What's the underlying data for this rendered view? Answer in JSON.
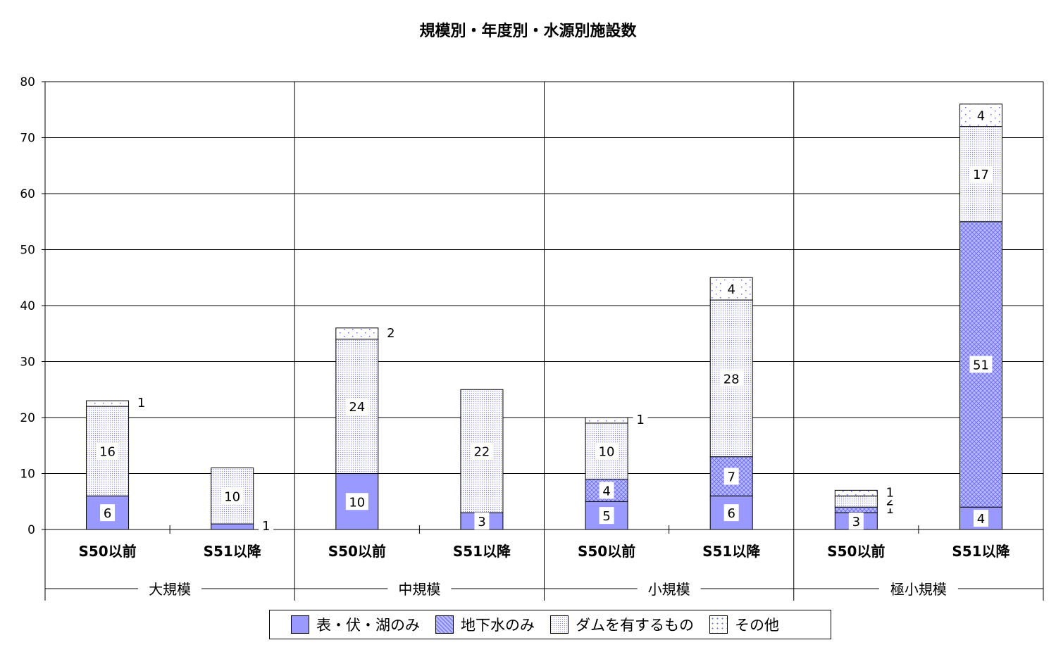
{
  "chart_data": {
    "type": "bar",
    "stacked": true,
    "title": "規模別・年度別・水源別施設数",
    "ylim": [
      0,
      80
    ],
    "yticks": [
      "0",
      "10",
      "20",
      "30",
      "40",
      "50",
      "60",
      "70",
      "80"
    ],
    "grid": true,
    "legend_position": "bottom",
    "groups": [
      "大規模",
      "中規模",
      "小規模",
      "極小規模"
    ],
    "categories": [
      "S50以前",
      "S51以降",
      "S50以前",
      "S51以降",
      "S50以前",
      "S51以降",
      "S50以前",
      "S51以降"
    ],
    "series": [
      {
        "name": "表・伏・湖のみ",
        "color": "#9999ff",
        "pattern": "solid",
        "values": [
          6,
          1,
          10,
          3,
          5,
          6,
          3,
          4
        ],
        "labels": [
          "6",
          "1",
          "10",
          "3",
          "5",
          "6",
          "3",
          "4"
        ]
      },
      {
        "name": "地下水のみ",
        "color": "#8080ff",
        "pattern": "crosshatch",
        "values": [
          0,
          0,
          0,
          0,
          4,
          7,
          1,
          51
        ],
        "labels": [
          "",
          "",
          "",
          "",
          "4",
          "7",
          "1",
          "51"
        ]
      },
      {
        "name": "ダムを有するもの",
        "color": "#8080ff",
        "pattern": "fine-dots",
        "values": [
          16,
          10,
          24,
          22,
          10,
          28,
          2,
          17
        ],
        "labels": [
          "16",
          "10",
          "24",
          "22",
          "10",
          "28",
          "2",
          "17"
        ]
      },
      {
        "name": "その他",
        "color": "#8080ff",
        "pattern": "sparse-dots",
        "values": [
          1,
          0,
          2,
          0,
          1,
          4,
          1,
          4
        ],
        "labels": [
          "1",
          "",
          "2",
          "",
          "1",
          "4",
          "1",
          "4"
        ]
      }
    ]
  }
}
